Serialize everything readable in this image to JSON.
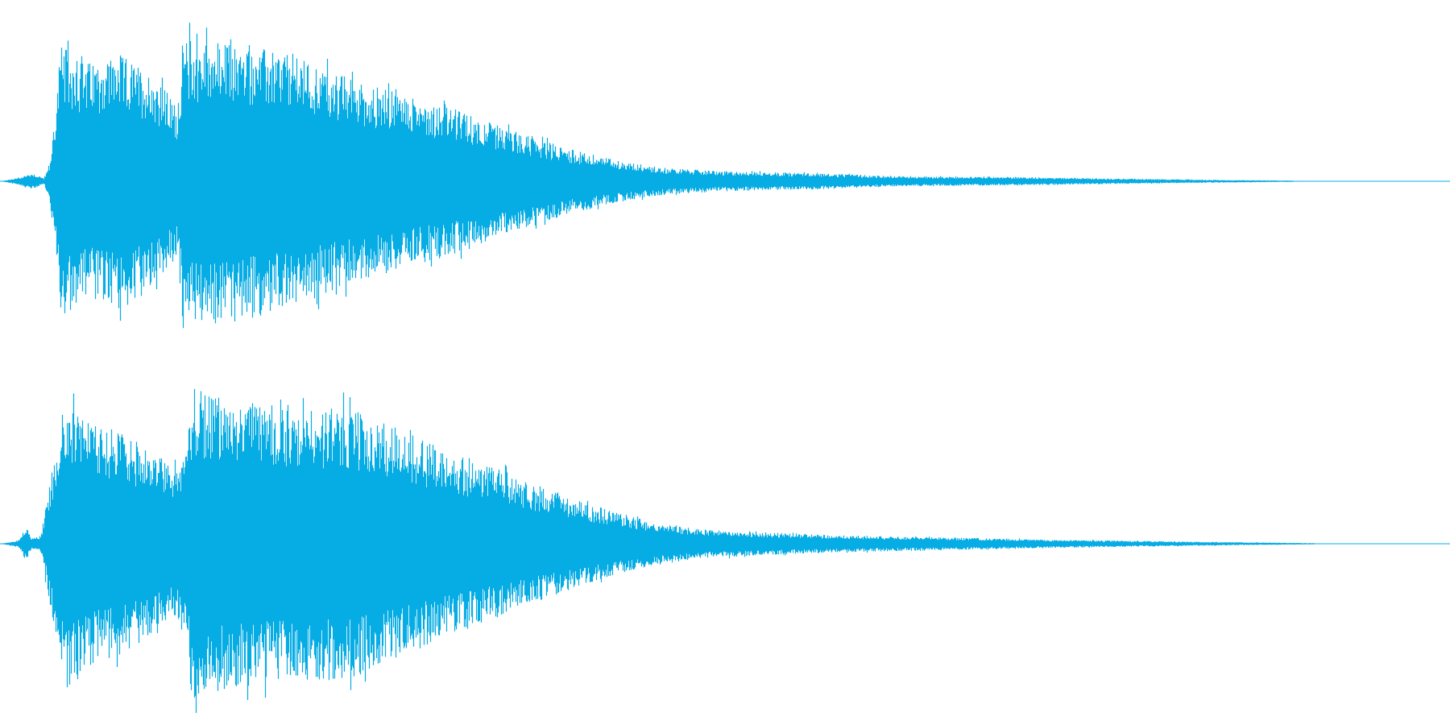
{
  "waveform": {
    "color": "#06ace4",
    "background": "#ffffff",
    "channels": [
      {
        "name": "top",
        "envelope": [
          [
            0.0,
            0.0
          ],
          [
            0.012,
            0.02
          ],
          [
            0.022,
            0.05
          ],
          [
            0.03,
            0.02
          ],
          [
            0.034,
            0.1
          ],
          [
            0.038,
            0.45
          ],
          [
            0.042,
            0.82
          ],
          [
            0.06,
            0.72
          ],
          [
            0.08,
            0.78
          ],
          [
            0.1,
            0.68
          ],
          [
            0.112,
            0.58
          ],
          [
            0.122,
            0.45
          ],
          [
            0.126,
            0.88
          ],
          [
            0.14,
            0.86
          ],
          [
            0.17,
            0.82
          ],
          [
            0.2,
            0.78
          ],
          [
            0.22,
            0.7
          ],
          [
            0.25,
            0.6
          ],
          [
            0.28,
            0.52
          ],
          [
            0.31,
            0.45
          ],
          [
            0.34,
            0.35
          ],
          [
            0.37,
            0.26
          ],
          [
            0.4,
            0.18
          ],
          [
            0.43,
            0.12
          ],
          [
            0.46,
            0.08
          ],
          [
            0.5,
            0.06
          ],
          [
            0.56,
            0.05
          ],
          [
            0.62,
            0.03
          ],
          [
            0.7,
            0.025
          ],
          [
            0.78,
            0.015
          ],
          [
            0.84,
            0.008
          ],
          [
            0.89,
            0.004
          ],
          [
            0.9,
            0.0
          ],
          [
            1.0,
            0.0
          ]
        ]
      },
      {
        "name": "bottom",
        "envelope": [
          [
            0.0,
            0.0
          ],
          [
            0.012,
            0.02
          ],
          [
            0.018,
            0.1
          ],
          [
            0.022,
            0.03
          ],
          [
            0.028,
            0.05
          ],
          [
            0.034,
            0.35
          ],
          [
            0.04,
            0.7
          ],
          [
            0.047,
            0.88
          ],
          [
            0.065,
            0.7
          ],
          [
            0.085,
            0.65
          ],
          [
            0.105,
            0.55
          ],
          [
            0.12,
            0.45
          ],
          [
            0.128,
            0.58
          ],
          [
            0.132,
            0.92
          ],
          [
            0.16,
            0.85
          ],
          [
            0.2,
            0.82
          ],
          [
            0.24,
            0.8
          ],
          [
            0.27,
            0.7
          ],
          [
            0.3,
            0.58
          ],
          [
            0.33,
            0.48
          ],
          [
            0.36,
            0.38
          ],
          [
            0.39,
            0.28
          ],
          [
            0.42,
            0.2
          ],
          [
            0.45,
            0.13
          ],
          [
            0.48,
            0.09
          ],
          [
            0.52,
            0.07
          ],
          [
            0.58,
            0.05
          ],
          [
            0.64,
            0.04
          ],
          [
            0.72,
            0.025
          ],
          [
            0.8,
            0.015
          ],
          [
            0.86,
            0.008
          ],
          [
            0.905,
            0.004
          ],
          [
            0.91,
            0.0
          ],
          [
            1.0,
            0.0
          ]
        ]
      }
    ]
  }
}
